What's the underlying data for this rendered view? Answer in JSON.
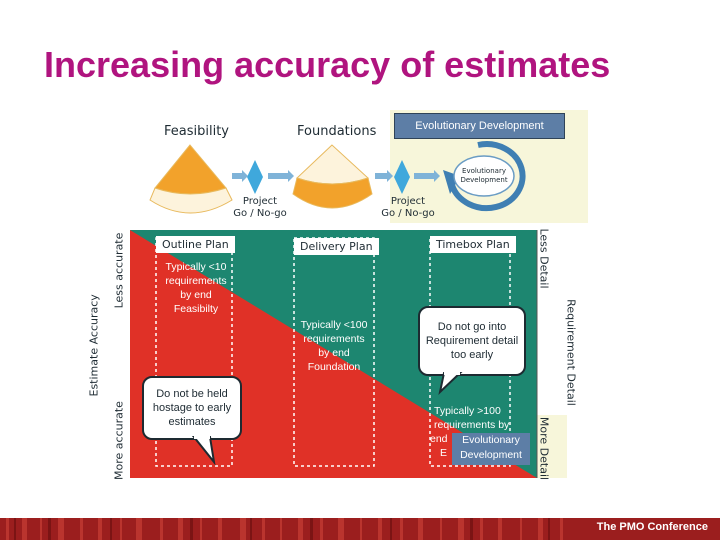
{
  "slide": {
    "title": "Increasing accuracy of estimates",
    "footer": "The PMO Conference"
  },
  "colors": {
    "title": "#b0147f",
    "green": "#1d8670",
    "red": "#e03127",
    "amber": "#f2a22b",
    "gate_blue": "#3fa8dc",
    "evo_blue": "#5d7ea6"
  },
  "phases": {
    "feasibility": "Feasibility",
    "foundations": "Foundations",
    "evolutionary": "Evolutionary Development",
    "evolutionary_cycle_line1": "Evolutionary",
    "evolutionary_cycle_line2": "Development"
  },
  "gates": [
    {
      "line1": "Project",
      "line2": "Go / No-go"
    },
    {
      "line1": "Project",
      "line2": "Go / No-go"
    }
  ],
  "plans": [
    {
      "title": "Outline Plan",
      "text": [
        "Typically <10",
        "requirements",
        "by end",
        "Feasibilty"
      ]
    },
    {
      "title": "Delivery Plan",
      "text": [
        "Typically <100",
        "requirements",
        "by end",
        "Foundation"
      ]
    },
    {
      "title": "Timebox Plan",
      "text": [
        "Typically >100",
        "requirements by",
        "end",
        "E"
      ]
    }
  ],
  "bubbles": {
    "hostage": [
      "Do not be held",
      "hostage to early",
      "estimates"
    ],
    "early": [
      "Do not go into",
      "Requirement detail",
      "too early"
    ]
  },
  "evo_label": [
    "Evolutionary",
    "Development"
  ],
  "axes": {
    "left_main": "Estimate Accuracy",
    "left_top": "Less accurate",
    "left_bottom": "More accurate",
    "right_main": "Requirement Detail",
    "right_top": "Less Detail",
    "right_bottom": "More Detail"
  }
}
